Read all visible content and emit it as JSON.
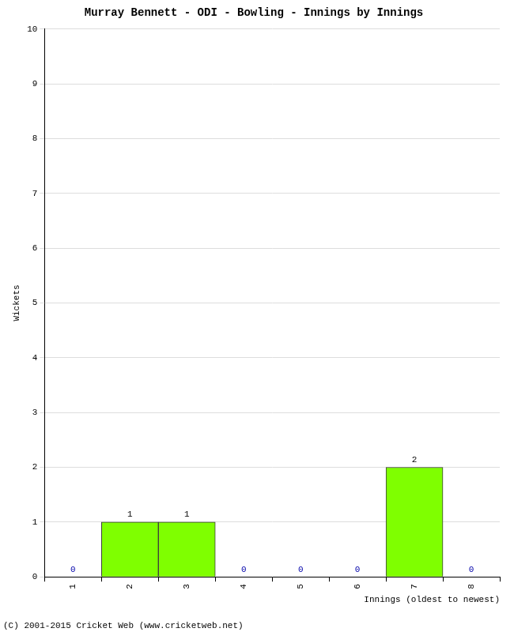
{
  "chart_data": {
    "type": "bar",
    "title": "Murray Bennett - ODI - Bowling - Innings by Innings",
    "x_label": "Innings (oldest to newest)",
    "y_label": "Wickets",
    "categories": [
      "1",
      "2",
      "3",
      "4",
      "5",
      "6",
      "7",
      "8"
    ],
    "values": [
      0,
      1,
      1,
      0,
      0,
      0,
      2,
      0
    ],
    "color": "#7fff00",
    "ylim": [
      0,
      10
    ],
    "yticks": [
      0,
      1,
      2,
      3,
      4,
      5,
      6,
      7,
      8,
      9,
      10
    ],
    "grid": true,
    "data_labels": true,
    "annotations": [
      "(C) 2001-2015 Cricket Web (www.cricketweb.net)"
    ]
  }
}
